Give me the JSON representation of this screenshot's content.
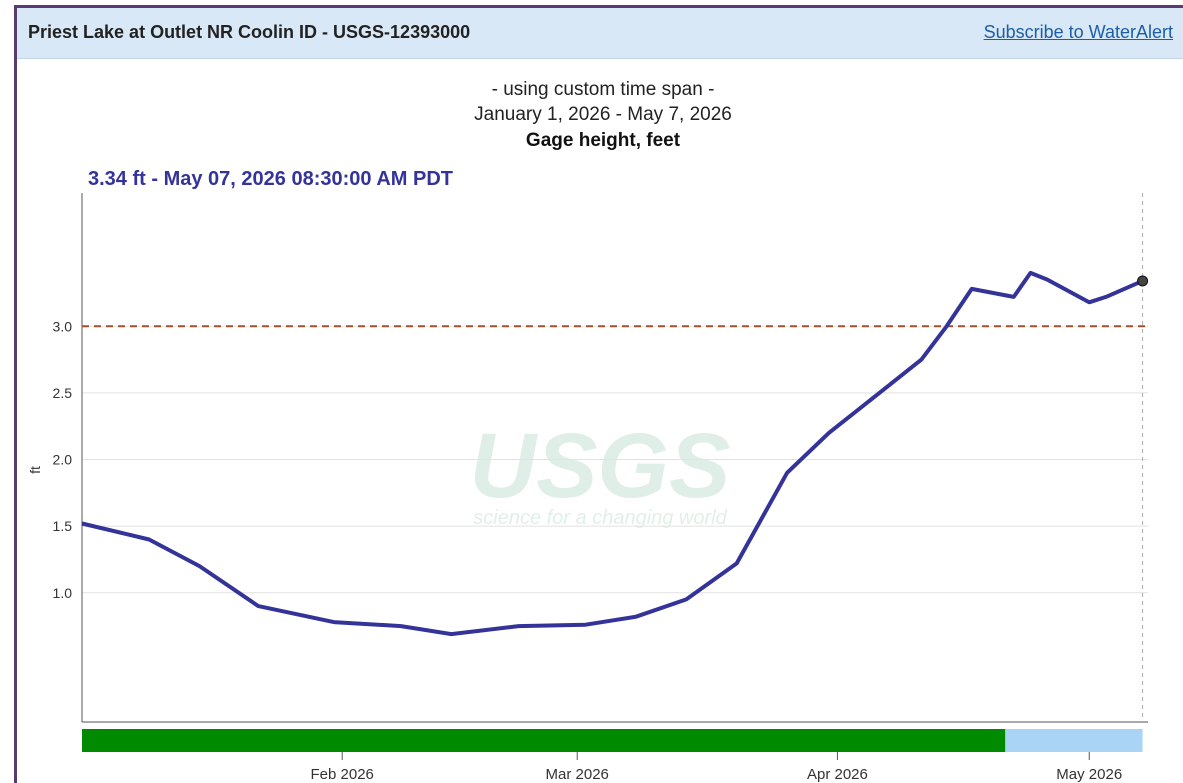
{
  "header": {
    "title": "Priest Lake at Outlet NR Coolin ID - USGS-12393000",
    "link": "Subscribe to WaterAlert"
  },
  "chart_data": {
    "type": "line",
    "subtitle": [
      "- using custom time span -",
      "January 1, 2026 - May 7, 2026"
    ],
    "title": "Gage height, feet",
    "current_value": "3.34 ft - May 07, 2026 08:30:00 AM PDT",
    "y_label": "ft",
    "watermark": [
      "USGS",
      "science for a changing world"
    ],
    "x": [
      "2026-01-01",
      "2026-01-09",
      "2026-01-15",
      "2026-01-22",
      "2026-01-31",
      "2026-02-08",
      "2026-02-14",
      "2026-02-22",
      "2026-03-02",
      "2026-03-08",
      "2026-03-14",
      "2026-03-20",
      "2026-03-26",
      "2026-03-31",
      "2026-04-06",
      "2026-04-11",
      "2026-04-14",
      "2026-04-17",
      "2026-04-22",
      "2026-04-24",
      "2026-04-26",
      "2026-05-01",
      "2026-05-03",
      "2026-05-07T08:30"
    ],
    "series": [
      {
        "name": "Gage height",
        "color": "#333399",
        "values": [
          1.52,
          1.4,
          1.2,
          0.9,
          0.78,
          0.75,
          0.69,
          0.75,
          0.76,
          0.82,
          0.95,
          1.22,
          1.9,
          2.2,
          2.5,
          2.75,
          3.0,
          3.28,
          3.22,
          3.4,
          3.35,
          3.18,
          3.22,
          3.34
        ]
      }
    ],
    "threshold": {
      "value": 3.0,
      "color": "#a0522d"
    },
    "status_bar": [
      {
        "start": "2026-01-01",
        "end": "2026-04-21",
        "color": "#008a00"
      },
      {
        "start": "2026-04-21",
        "end": "2026-05-07T08:30",
        "color": "#a9d4f5"
      }
    ],
    "xlim": [
      "2026-01-01",
      "2026-05-08"
    ],
    "xticks": [
      {
        "value": "2026-02-01",
        "label": "Feb 2026"
      },
      {
        "value": "2026-03-01",
        "label": "Mar 2026"
      },
      {
        "value": "2026-04-01",
        "label": "Apr 2026"
      },
      {
        "value": "2026-05-01",
        "label": "May 2026"
      }
    ],
    "ylim": [
      0,
      4
    ],
    "yticks": [
      {
        "value": 1,
        "label": "1.0"
      },
      {
        "value": 1.5,
        "label": "1.5"
      },
      {
        "value": 2,
        "label": "2.0"
      },
      {
        "value": 2.5,
        "label": "2.5"
      },
      {
        "value": 3,
        "label": "3.0"
      }
    ],
    "grid": true
  }
}
